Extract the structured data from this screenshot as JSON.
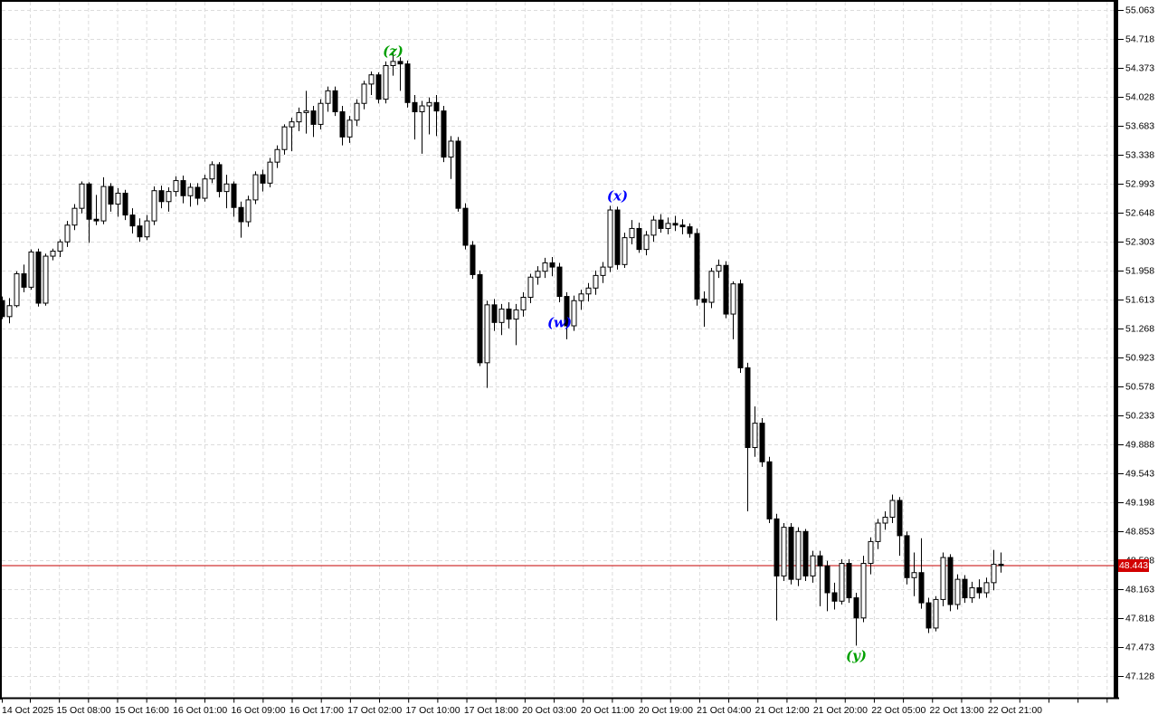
{
  "colors": {
    "background": "#ffffff",
    "grid": "#dcdcdc",
    "frame": "#000000",
    "axis_text": "#000000",
    "bull_fill": "#ffffff",
    "bear_fill": "#000000",
    "candle_outline": "#000000",
    "price_line": "#c40000",
    "tag_bg": "#d20000",
    "tag_text": "#ffffff",
    "green_label": "#00a000",
    "blue_label": "#0000ff"
  },
  "chart_data": {
    "type": "candlestick",
    "title": "",
    "current_price": "48.443",
    "price_line_value": 48.443,
    "price_axis": {
      "top_value": 55.063,
      "step": 0.345,
      "labels": [
        "55.063",
        "54.718",
        "54.373",
        "54.028",
        "53.683",
        "53.338",
        "52.993",
        "52.648",
        "52.303",
        "51.958",
        "51.613",
        "51.268",
        "50.923",
        "50.578",
        "50.233",
        "49.888",
        "49.543",
        "49.198",
        "48.853",
        "48.508",
        "48.163",
        "47.818",
        "47.473",
        "47.128"
      ]
    },
    "time_axis": {
      "labels": [
        "14 Oct 2025",
        "15 Oct 08:00",
        "15 Oct 16:00",
        "16 Oct 01:00",
        "16 Oct 09:00",
        "16 Oct 17:00",
        "17 Oct 02:00",
        "17 Oct 10:00",
        "17 Oct 18:00",
        "20 Oct 03:00",
        "20 Oct 11:00",
        "20 Oct 19:00",
        "21 Oct 04:00",
        "21 Oct 12:00",
        "21 Oct 20:00",
        "22 Oct 05:00",
        "22 Oct 13:00",
        "22 Oct 21:00"
      ]
    },
    "annotations": [
      {
        "text": "(z)",
        "color_key": "green_label",
        "bar": 54,
        "price": 54.57
      },
      {
        "text": "(x)",
        "color_key": "blue_label",
        "bar": 85,
        "price": 52.85
      },
      {
        "text": "(w)",
        "color_key": "blue_label",
        "bar": 77,
        "price": 51.34
      },
      {
        "text": "(y)",
        "color_key": "green_label",
        "bar": 118,
        "price": 47.37
      }
    ],
    "candles": [
      [
        51.6,
        51.65,
        51.38,
        51.41
      ],
      [
        51.41,
        51.63,
        51.33,
        51.54
      ],
      [
        51.54,
        51.95,
        51.52,
        51.92
      ],
      [
        51.92,
        52.03,
        51.7,
        51.76
      ],
      [
        51.76,
        52.21,
        51.73,
        52.18
      ],
      [
        52.18,
        52.22,
        51.53,
        51.57
      ],
      [
        51.57,
        52.16,
        51.54,
        52.13
      ],
      [
        52.13,
        52.22,
        52.08,
        52.19
      ],
      [
        52.19,
        52.33,
        52.12,
        52.3
      ],
      [
        52.3,
        52.55,
        52.24,
        52.5
      ],
      [
        52.5,
        52.75,
        52.44,
        52.7
      ],
      [
        52.7,
        53.02,
        52.64,
        52.99
      ],
      [
        52.99,
        53.01,
        52.29,
        52.57
      ],
      [
        52.57,
        52.86,
        52.5,
        52.55
      ],
      [
        52.55,
        53.07,
        52.51,
        52.96
      ],
      [
        52.96,
        53.0,
        52.66,
        52.75
      ],
      [
        52.75,
        52.94,
        52.6,
        52.88
      ],
      [
        52.88,
        52.92,
        52.56,
        52.62
      ],
      [
        52.62,
        52.7,
        52.4,
        52.49
      ],
      [
        52.49,
        52.58,
        52.3,
        52.36
      ],
      [
        52.36,
        52.62,
        52.32,
        52.55
      ],
      [
        52.55,
        52.96,
        52.5,
        52.91
      ],
      [
        52.91,
        52.97,
        52.7,
        52.78
      ],
      [
        52.78,
        52.95,
        52.66,
        52.9
      ],
      [
        52.9,
        53.08,
        52.84,
        53.03
      ],
      [
        53.03,
        53.09,
        52.76,
        52.85
      ],
      [
        52.85,
        53.0,
        52.72,
        52.95
      ],
      [
        52.95,
        53.0,
        52.74,
        52.82
      ],
      [
        52.82,
        53.1,
        52.78,
        53.05
      ],
      [
        53.05,
        53.26,
        53.0,
        53.22
      ],
      [
        53.22,
        53.25,
        52.83,
        52.9
      ],
      [
        52.9,
        53.1,
        52.7,
        52.99
      ],
      [
        52.99,
        53.02,
        52.6,
        52.71
      ],
      [
        52.71,
        52.78,
        52.35,
        52.54
      ],
      [
        52.54,
        52.85,
        52.48,
        52.8
      ],
      [
        52.8,
        53.14,
        52.75,
        53.1
      ],
      [
        53.1,
        53.16,
        52.9,
        53.0
      ],
      [
        53.0,
        53.3,
        52.95,
        53.25
      ],
      [
        53.25,
        53.45,
        53.18,
        53.4
      ],
      [
        53.4,
        53.7,
        53.34,
        53.67
      ],
      [
        53.67,
        53.78,
        53.38,
        53.73
      ],
      [
        53.73,
        53.9,
        53.62,
        53.84
      ],
      [
        53.84,
        54.1,
        53.59,
        53.86
      ],
      [
        53.86,
        53.92,
        53.55,
        53.7
      ],
      [
        53.7,
        54.0,
        53.64,
        53.95
      ],
      [
        53.95,
        54.15,
        53.85,
        54.1
      ],
      [
        54.1,
        54.15,
        53.8,
        53.85
      ],
      [
        53.85,
        53.92,
        53.45,
        53.55
      ],
      [
        53.55,
        53.8,
        53.48,
        53.75
      ],
      [
        53.75,
        54.0,
        53.68,
        53.95
      ],
      [
        53.95,
        54.22,
        53.88,
        54.18
      ],
      [
        54.18,
        54.33,
        54.05,
        54.29
      ],
      [
        54.29,
        54.32,
        53.95,
        54.0
      ],
      [
        54.0,
        54.45,
        53.95,
        54.4
      ],
      [
        54.4,
        54.55,
        54.28,
        54.45
      ],
      [
        54.45,
        54.5,
        54.1,
        54.42
      ],
      [
        54.42,
        54.46,
        53.9,
        53.96
      ],
      [
        53.96,
        54.05,
        53.52,
        53.85
      ],
      [
        53.85,
        53.98,
        53.35,
        53.92
      ],
      [
        53.92,
        54.02,
        53.58,
        53.96
      ],
      [
        53.96,
        54.05,
        53.56,
        53.86
      ],
      [
        53.86,
        53.92,
        53.25,
        53.31
      ],
      [
        53.31,
        53.56,
        53.05,
        53.5
      ],
      [
        53.5,
        53.55,
        52.66,
        52.7
      ],
      [
        52.7,
        52.76,
        52.21,
        52.26
      ],
      [
        52.26,
        52.31,
        51.86,
        51.91
      ],
      [
        51.91,
        51.96,
        50.82,
        50.86
      ],
      [
        50.86,
        51.6,
        50.56,
        51.55
      ],
      [
        51.55,
        51.62,
        51.24,
        51.34
      ],
      [
        51.34,
        51.56,
        51.19,
        51.5
      ],
      [
        51.5,
        51.58,
        51.27,
        51.38
      ],
      [
        51.38,
        51.56,
        51.07,
        51.49
      ],
      [
        51.49,
        51.7,
        51.41,
        51.64
      ],
      [
        51.64,
        51.92,
        51.57,
        51.88
      ],
      [
        51.88,
        52.01,
        51.79,
        51.95
      ],
      [
        51.95,
        52.11,
        51.87,
        52.05
      ],
      [
        52.05,
        52.12,
        51.89,
        52.0
      ],
      [
        52.0,
        52.05,
        51.58,
        51.65
      ],
      [
        51.65,
        51.7,
        51.14,
        51.3
      ],
      [
        51.3,
        51.66,
        51.24,
        51.6
      ],
      [
        51.6,
        51.73,
        51.49,
        51.68
      ],
      [
        51.68,
        51.81,
        51.59,
        51.75
      ],
      [
        51.75,
        51.96,
        51.67,
        51.9
      ],
      [
        51.9,
        52.06,
        51.81,
        52.0
      ],
      [
        52.0,
        52.73,
        51.94,
        52.68
      ],
      [
        52.68,
        52.72,
        51.97,
        52.03
      ],
      [
        52.03,
        52.41,
        51.99,
        52.35
      ],
      [
        52.35,
        52.56,
        52.27,
        52.46
      ],
      [
        52.46,
        52.53,
        52.17,
        52.21
      ],
      [
        52.21,
        52.43,
        52.14,
        52.38
      ],
      [
        52.38,
        52.61,
        52.3,
        52.56
      ],
      [
        52.56,
        52.63,
        52.41,
        52.46
      ],
      [
        52.46,
        52.59,
        52.39,
        52.52
      ],
      [
        52.52,
        52.61,
        52.43,
        52.5
      ],
      [
        52.5,
        52.57,
        52.39,
        52.48
      ],
      [
        52.48,
        52.52,
        52.35,
        52.4
      ],
      [
        52.4,
        52.46,
        51.54,
        51.62
      ],
      [
        51.62,
        51.71,
        51.29,
        51.58
      ],
      [
        51.58,
        51.99,
        51.51,
        51.95
      ],
      [
        51.95,
        52.09,
        51.87,
        52.02
      ],
      [
        52.02,
        52.07,
        51.39,
        51.44
      ],
      [
        51.44,
        51.83,
        51.14,
        51.8
      ],
      [
        51.8,
        51.85,
        50.74,
        50.8
      ],
      [
        50.8,
        50.86,
        49.09,
        49.85
      ],
      [
        49.85,
        50.34,
        49.74,
        50.14
      ],
      [
        50.14,
        50.2,
        49.62,
        49.68
      ],
      [
        49.68,
        49.74,
        48.95,
        49.0
      ],
      [
        49.0,
        49.06,
        47.79,
        48.32
      ],
      [
        48.32,
        48.95,
        48.26,
        48.9
      ],
      [
        48.9,
        48.95,
        48.22,
        48.28
      ],
      [
        48.28,
        48.9,
        48.2,
        48.85
      ],
      [
        48.85,
        48.88,
        48.26,
        48.32
      ],
      [
        48.32,
        48.62,
        48.24,
        48.56
      ],
      [
        48.56,
        48.62,
        47.96,
        48.44
      ],
      [
        48.44,
        48.5,
        47.9,
        48.12
      ],
      [
        48.12,
        48.24,
        47.92,
        48.02
      ],
      [
        48.02,
        48.52,
        47.98,
        48.47
      ],
      [
        48.47,
        48.52,
        48.0,
        48.06
      ],
      [
        48.06,
        48.12,
        47.49,
        47.82
      ],
      [
        47.82,
        48.56,
        47.77,
        48.47
      ],
      [
        48.47,
        48.78,
        48.34,
        48.73
      ],
      [
        48.73,
        49.0,
        48.64,
        48.95
      ],
      [
        48.95,
        49.09,
        48.87,
        49.02
      ],
      [
        49.02,
        49.29,
        48.95,
        49.22
      ],
      [
        49.22,
        49.26,
        48.56,
        48.8
      ],
      [
        48.8,
        48.85,
        48.22,
        48.3
      ],
      [
        48.3,
        48.6,
        48.08,
        48.36
      ],
      [
        48.36,
        48.77,
        47.93,
        48.0
      ],
      [
        48.0,
        48.06,
        47.64,
        47.7
      ],
      [
        47.7,
        48.08,
        47.66,
        48.04
      ],
      [
        48.04,
        48.6,
        47.96,
        48.54
      ],
      [
        48.54,
        48.58,
        47.9,
        47.98
      ],
      [
        47.98,
        48.34,
        47.92,
        48.28
      ],
      [
        48.28,
        48.33,
        48.0,
        48.06
      ],
      [
        48.06,
        48.25,
        48.0,
        48.18
      ],
      [
        48.18,
        48.28,
        48.05,
        48.12
      ],
      [
        48.12,
        48.3,
        48.06,
        48.24
      ],
      [
        48.24,
        48.63,
        48.15,
        48.46
      ],
      [
        48.46,
        48.6,
        48.36,
        48.443
      ]
    ]
  }
}
